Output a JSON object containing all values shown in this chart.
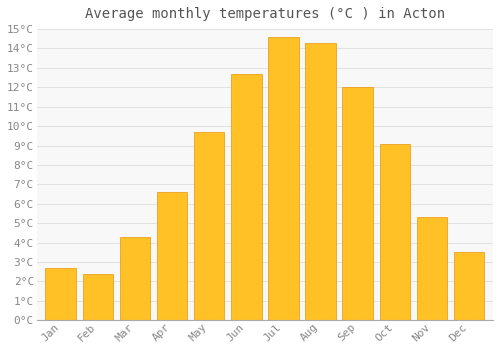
{
  "title": "Average monthly temperatures (°C ) in Acton",
  "months": [
    "Jan",
    "Feb",
    "Mar",
    "Apr",
    "May",
    "Jun",
    "Jul",
    "Aug",
    "Sep",
    "Oct",
    "Nov",
    "Dec"
  ],
  "values": [
    2.7,
    2.4,
    4.3,
    6.6,
    9.7,
    12.7,
    14.6,
    14.3,
    12.0,
    9.1,
    5.3,
    3.5
  ],
  "bar_color_top": "#FFC125",
  "bar_color_bottom": "#FFB000",
  "bar_edge_color": "#E8960A",
  "background_color": "#FFFFFF",
  "plot_bg_color": "#F8F8F8",
  "grid_color": "#DDDDDD",
  "ylim": [
    0,
    15
  ],
  "yticks": [
    0,
    1,
    2,
    3,
    4,
    5,
    6,
    7,
    8,
    9,
    10,
    11,
    12,
    13,
    14,
    15
  ],
  "title_fontsize": 10,
  "tick_fontsize": 8,
  "tick_color": "#888888",
  "title_color": "#555555",
  "bar_width": 0.82
}
